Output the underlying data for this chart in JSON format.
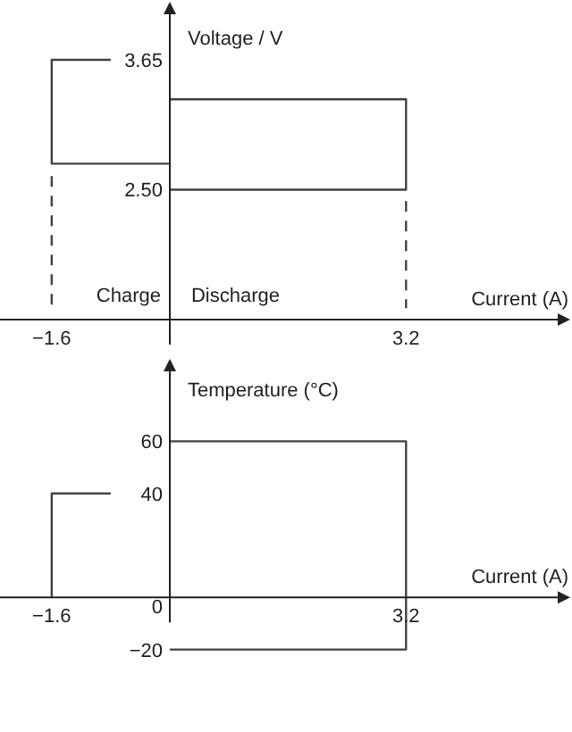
{
  "chart_data": [
    {
      "type": "line",
      "ylabel": "Voltage / V",
      "xlabel": "Current (A)",
      "xlim": [
        -2.3,
        5.4
      ],
      "ylim": [
        1.35,
        4.1
      ],
      "xticks": [
        {
          "value": -1.6,
          "label": "−1.6"
        },
        3.2
      ],
      "yticks": [
        {
          "value": 2.5,
          "label": "2.50"
        },
        3.65
      ],
      "annotations": [
        "Charge",
        "Discharge"
      ],
      "series": [
        {
          "color": "#444444",
          "x": [
            -0.8,
            -1.6,
            -1.6,
            0
          ],
          "values": [
            3.65,
            3.65,
            2.73,
            2.73
          ]
        },
        {
          "color": "#444444",
          "x": [
            0,
            3.2,
            3.2,
            0
          ],
          "values": [
            3.3,
            3.3,
            2.5,
            2.5
          ]
        },
        {
          "color": "#444444",
          "line_style": "dashed",
          "x": [
            -1.6,
            -1.6
          ],
          "values": [
            2.62,
            1.45
          ]
        },
        {
          "color": "#444444",
          "line_style": "dashed",
          "x": [
            3.2,
            3.2
          ],
          "values": [
            2.4,
            1.45
          ]
        }
      ]
    },
    {
      "type": "line",
      "ylabel": "Temperature (°C)",
      "xlabel": "Current (A)",
      "xlim": [
        -2.3,
        5.4
      ],
      "ylim": [
        -51,
        91
      ],
      "xticks": [
        {
          "value": -1.6,
          "label": "−1.6"
        },
        3.2
      ],
      "yticks": [
        {
          "value": -20,
          "label": "−20"
        },
        0,
        40,
        60
      ],
      "series": [
        {
          "color": "#444444",
          "x": [
            -1.6,
            -1.6,
            -0.8
          ],
          "values": [
            0,
            40,
            40
          ]
        },
        {
          "color": "#444444",
          "x": [
            0,
            3.2,
            3.2,
            0
          ],
          "values": [
            60,
            60,
            -20,
            -20
          ]
        }
      ]
    }
  ]
}
